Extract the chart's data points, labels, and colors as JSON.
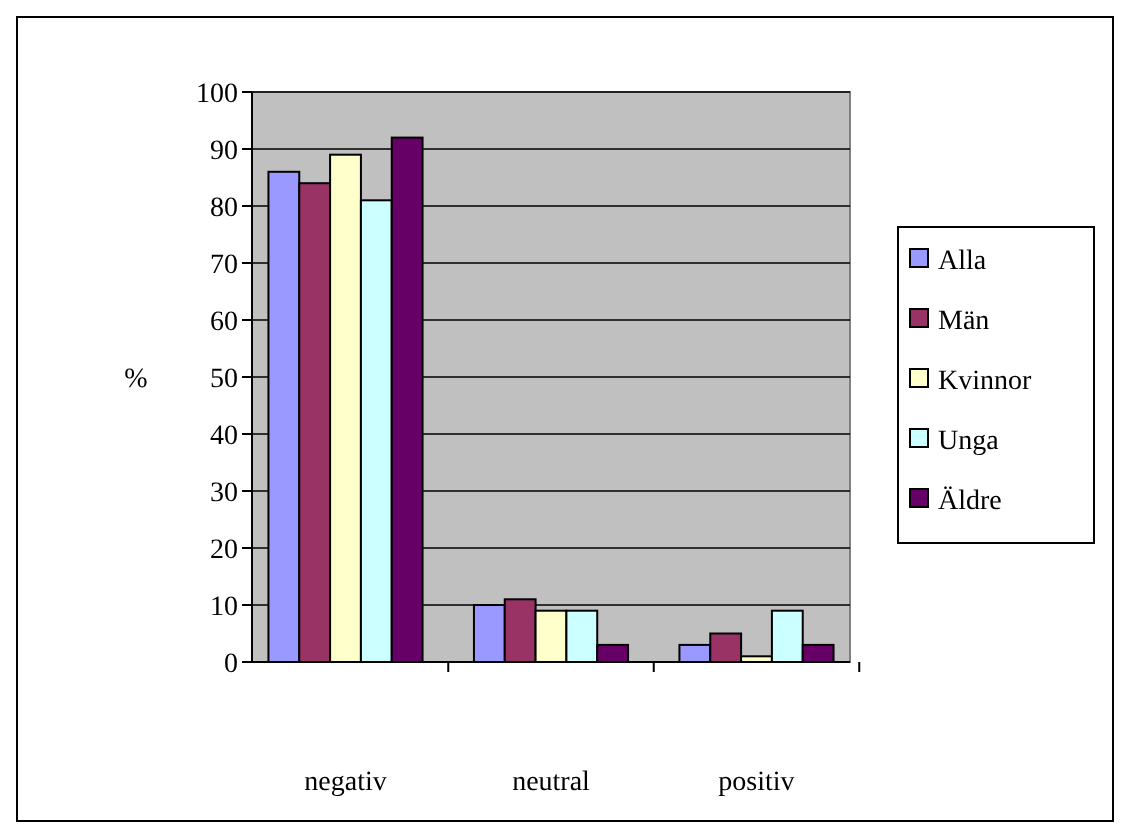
{
  "chart_data": {
    "type": "bar",
    "ylabel": "%",
    "categories": [
      "negativ",
      "neutral",
      "positiv"
    ],
    "series": [
      {
        "name": "Alla",
        "color": "#9999ff",
        "values": [
          86,
          10,
          3
        ]
      },
      {
        "name": "Män",
        "color": "#993366",
        "values": [
          84,
          11,
          5
        ]
      },
      {
        "name": "Kvinnor",
        "color": "#ffffcc",
        "values": [
          89,
          9,
          1
        ]
      },
      {
        "name": "Unga",
        "color": "#ccffff",
        "values": [
          81,
          9,
          9
        ]
      },
      {
        "name": "Äldre",
        "color": "#660066",
        "values": [
          92,
          3,
          3
        ]
      }
    ],
    "ylim": [
      0,
      100
    ],
    "yticks": [
      0,
      10,
      20,
      30,
      40,
      50,
      60,
      70,
      80,
      90,
      100
    ],
    "grid": "y",
    "legend": "right"
  }
}
